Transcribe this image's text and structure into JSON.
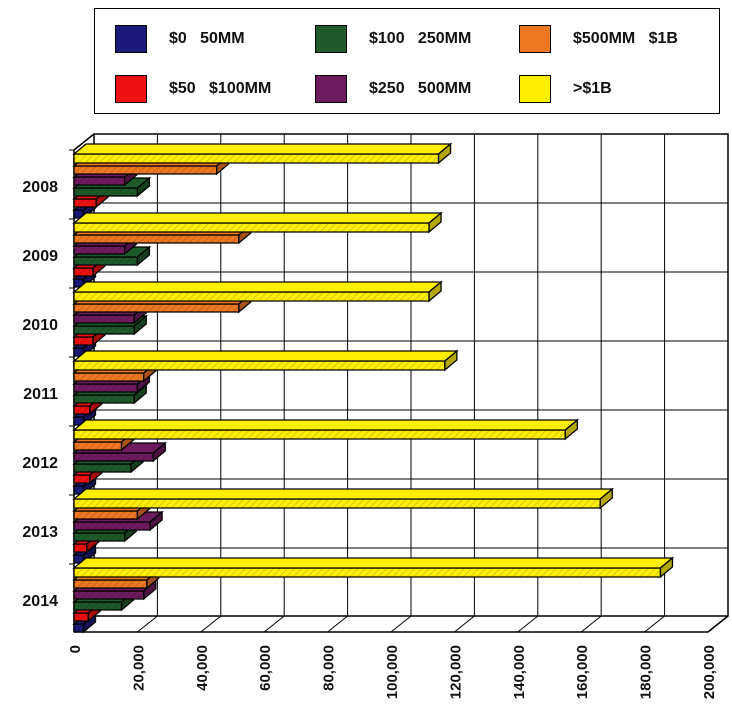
{
  "chart_data": {
    "type": "bar",
    "orientation": "horizontal",
    "categories": [
      "2008",
      "2009",
      "2010",
      "2011",
      "2012",
      "2013",
      "2014"
    ],
    "series": [
      {
        "name": "$0   50MM",
        "color": "#1a1a7a",
        "values": [
          3000,
          3000,
          3000,
          3000,
          3000,
          3000,
          3000
        ]
      },
      {
        "name": "$50   $100MM",
        "color": "#ee1111",
        "values": [
          7000,
          6000,
          6000,
          5000,
          5000,
          4000,
          4500
        ]
      },
      {
        "name": "$100   250MM",
        "color": "#1e5a2a",
        "values": [
          20000,
          20000,
          19000,
          19000,
          18000,
          16000,
          15000
        ]
      },
      {
        "name": "$250   500MM",
        "color": "#6e1a5e",
        "values": [
          16000,
          16000,
          19000,
          20000,
          25000,
          24000,
          22000
        ]
      },
      {
        "name": "$500MM   $1B",
        "color": "#ee7722",
        "values": [
          45000,
          52000,
          52000,
          22000,
          15000,
          20000,
          23000
        ]
      },
      {
        "name": ">$1B",
        "color": "#ffee00",
        "values": [
          115000,
          112000,
          112000,
          117000,
          155000,
          166000,
          185000
        ]
      }
    ],
    "xlim": [
      0,
      200000
    ],
    "xticks": [
      "0",
      "20,000",
      "40,000",
      "60,000",
      "80,000",
      "100,000",
      "120,000",
      "140,000",
      "160,000",
      "180,000",
      "200,000"
    ],
    "legend_position": "top",
    "grid": true,
    "style": "3d"
  }
}
